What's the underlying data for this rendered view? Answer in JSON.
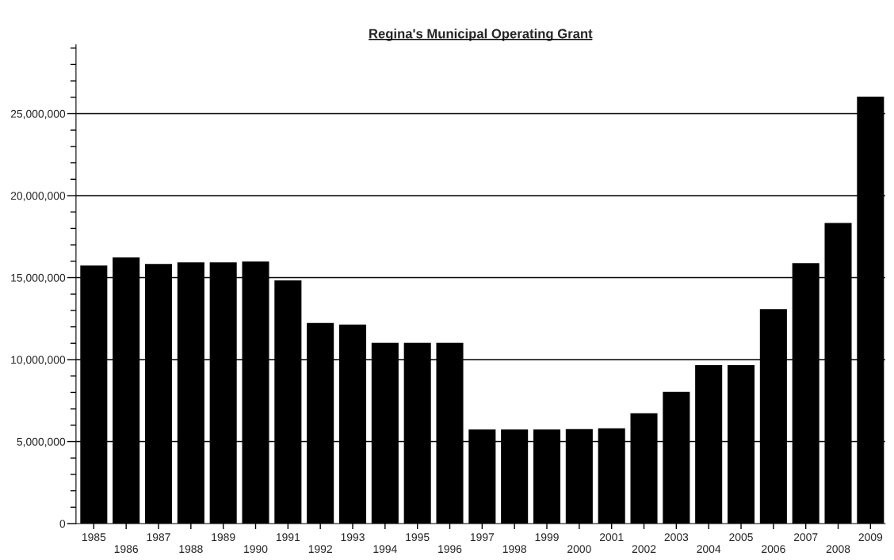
{
  "chart_data": {
    "type": "bar",
    "title": "Regina's Municipal Operating Grant",
    "categories": [
      "1985",
      "1986",
      "1987",
      "1988",
      "1989",
      "1990",
      "1991",
      "1992",
      "1993",
      "1994",
      "1995",
      "1996",
      "1997",
      "1998",
      "1999",
      "2000",
      "2001",
      "2002",
      "2003",
      "2004",
      "2005",
      "2006",
      "2007",
      "2008",
      "2009"
    ],
    "values": [
      15700000,
      16200000,
      15800000,
      15900000,
      15900000,
      15950000,
      14800000,
      12200000,
      12100000,
      11000000,
      11000000,
      11000000,
      5700000,
      5700000,
      5700000,
      5730000,
      5780000,
      6700000,
      8000000,
      9630000,
      9630000,
      13050000,
      15850000,
      18300000,
      26000000
    ],
    "color": "#000000",
    "ylim": [
      0,
      29200000
    ],
    "yticks": [
      {
        "value": 0,
        "label": "0"
      },
      {
        "value": 1000000,
        "label": null
      },
      {
        "value": 2000000,
        "label": null
      },
      {
        "value": 3000000,
        "label": null
      },
      {
        "value": 4000000,
        "label": null
      },
      {
        "value": 5000000,
        "label": "5,000,000"
      },
      {
        "value": 6000000,
        "label": null
      },
      {
        "value": 7000000,
        "label": null
      },
      {
        "value": 8000000,
        "label": null
      },
      {
        "value": 9000000,
        "label": null
      },
      {
        "value": 10000000,
        "label": "10,000,000"
      },
      {
        "value": 11000000,
        "label": null
      },
      {
        "value": 12000000,
        "label": null
      },
      {
        "value": 13000000,
        "label": null
      },
      {
        "value": 14000000,
        "label": null
      },
      {
        "value": 15000000,
        "label": "15,000,000"
      },
      {
        "value": 16000000,
        "label": null
      },
      {
        "value": 17000000,
        "label": null
      },
      {
        "value": 18000000,
        "label": null
      },
      {
        "value": 19000000,
        "label": null
      },
      {
        "value": 20000000,
        "label": "20,000,000"
      },
      {
        "value": 21000000,
        "label": null
      },
      {
        "value": 22000000,
        "label": null
      },
      {
        "value": 23000000,
        "label": null
      },
      {
        "value": 24000000,
        "label": null
      },
      {
        "value": 25000000,
        "label": "25,000,000"
      },
      {
        "value": 26000000,
        "label": null
      },
      {
        "value": 27000000,
        "label": null
      },
      {
        "value": 28000000,
        "label": null
      },
      {
        "value": 29000000,
        "label": null
      }
    ],
    "grid": "y"
  }
}
